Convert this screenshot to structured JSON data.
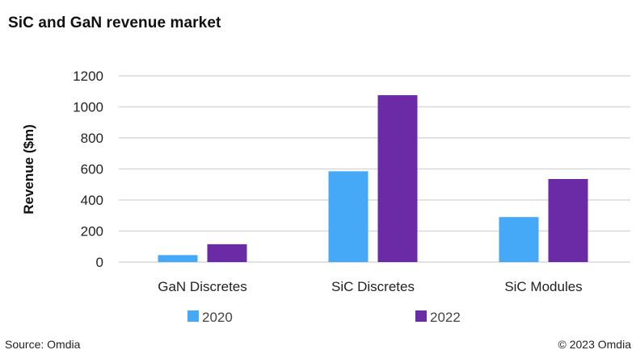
{
  "header": {
    "title": "SiC and GaN revenue market"
  },
  "footer": {
    "source": "Source: Omdia",
    "copyright": "© 2023 Omdia"
  },
  "colors": {
    "series_2020": "#46A9F7",
    "series_2022": "#6B2AA6",
    "grid": "#d9d9d9"
  },
  "chart_data": {
    "type": "bar",
    "title": "SiC and GaN revenue market",
    "xlabel": "",
    "ylabel": "Revenue ($m)",
    "ylim": [
      0,
      1200
    ],
    "yticks": [
      0,
      200,
      400,
      600,
      800,
      1000,
      1200
    ],
    "grid": true,
    "legend_position": "bottom",
    "categories": [
      "GaN Discretes",
      "SiC Discretes",
      "SiC Modules"
    ],
    "series": [
      {
        "name": "2020",
        "color": "#46A9F7",
        "values": [
          45,
          585,
          290
        ]
      },
      {
        "name": "2022",
        "color": "#6B2AA6",
        "values": [
          115,
          1075,
          535
        ]
      }
    ]
  }
}
